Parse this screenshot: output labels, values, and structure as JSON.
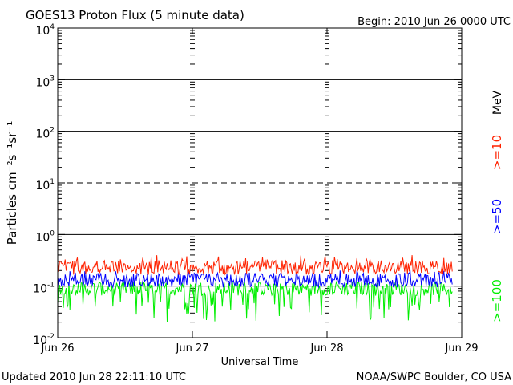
{
  "chart_data": {
    "type": "line",
    "title": "GOES13 Proton Flux (5 minute data)",
    "begin_label": "Begin: 2010 Jun 26 0000 UTC",
    "xlabel": "Universal Time",
    "ylabel": "Particles cm⁻²s⁻¹sr⁻¹",
    "y_scale": "log",
    "ylim": [
      0.01,
      10000
    ],
    "y_ticks": [
      {
        "base": "10",
        "exp": "-2"
      },
      {
        "base": "10",
        "exp": "-1"
      },
      {
        "base": "10",
        "exp": "0"
      },
      {
        "base": "10",
        "exp": "1"
      },
      {
        "base": "10",
        "exp": "2"
      },
      {
        "base": "10",
        "exp": "3"
      },
      {
        "base": "10",
        "exp": "4"
      }
    ],
    "x_ticks": [
      "Jun 26",
      "Jun 27",
      "Jun 28",
      "Jun 29"
    ],
    "xlim_days": [
      0,
      3
    ],
    "data_end_day": 2.93,
    "grid": "solid horizontal lines at 10^-1, 10^0, 10^2, 10^3; dashed line at 10^1",
    "unit_label": "MeV",
    "series": [
      {
        "name": ">=10",
        "color": "#ff2200",
        "mean": 0.23,
        "range": [
          0.15,
          0.4
        ]
      },
      {
        "name": ">=50",
        "color": "#0000ff",
        "mean": 0.13,
        "range": [
          0.09,
          0.2
        ]
      },
      {
        "name": ">=100",
        "color": "#00ee00",
        "mean": 0.09,
        "range": [
          0.02,
          0.12
        ]
      }
    ]
  },
  "footer": {
    "updated": "Updated 2010 Jun 28 22:11:10 UTC",
    "credit": "NOAA/SWPC Boulder, CO USA"
  }
}
